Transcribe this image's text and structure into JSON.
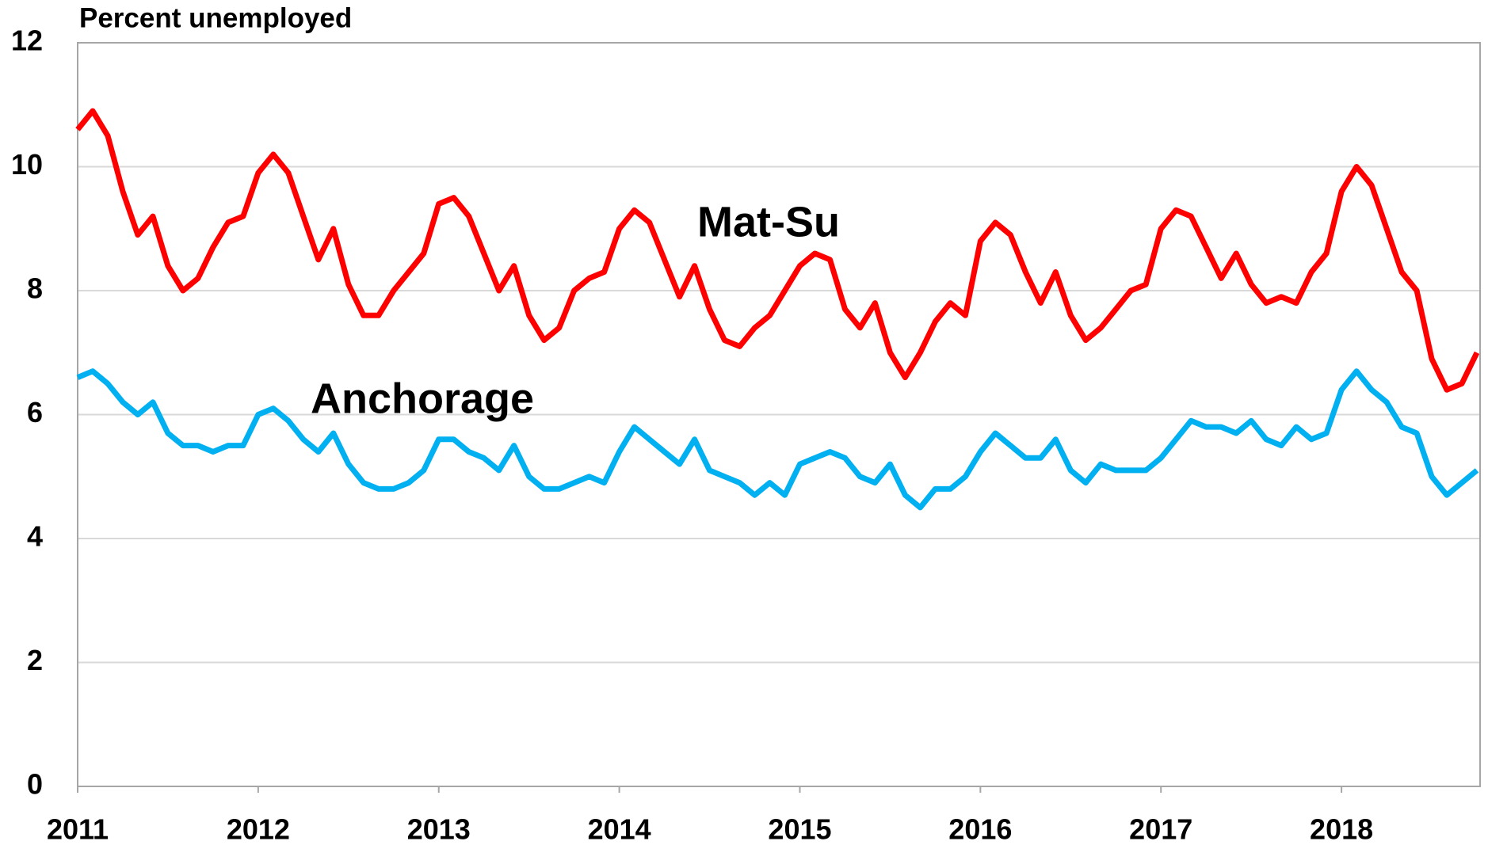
{
  "chart_data": {
    "type": "line",
    "title": "Percent unemployed",
    "x": [
      2011,
      2011.0833,
      2011.1667,
      2011.25,
      2011.3333,
      2011.4167,
      2011.5,
      2011.5833,
      2011.6667,
      2011.75,
      2011.8333,
      2011.9167,
      2012,
      2012.0833,
      2012.1667,
      2012.25,
      2012.3333,
      2012.4167,
      2012.5,
      2012.5833,
      2012.6667,
      2012.75,
      2012.8333,
      2012.9167,
      2013,
      2013.0833,
      2013.1667,
      2013.25,
      2013.3333,
      2013.4167,
      2013.5,
      2013.5833,
      2013.6667,
      2013.75,
      2013.8333,
      2013.9167,
      2014,
      2014.0833,
      2014.1667,
      2014.25,
      2014.3333,
      2014.4167,
      2014.5,
      2014.5833,
      2014.6667,
      2014.75,
      2014.8333,
      2014.9167,
      2015,
      2015.0833,
      2015.1667,
      2015.25,
      2015.3333,
      2015.4167,
      2015.5,
      2015.5833,
      2015.6667,
      2015.75,
      2015.8333,
      2015.9167,
      2016,
      2016.0833,
      2016.1667,
      2016.25,
      2016.3333,
      2016.4167,
      2016.5,
      2016.5833,
      2016.6667,
      2016.75,
      2016.8333,
      2016.9167,
      2017,
      2017.0833,
      2017.1667,
      2017.25,
      2017.3333,
      2017.4167,
      2017.5,
      2017.5833,
      2017.6667,
      2017.75,
      2017.8333,
      2017.9167,
      2018,
      2018.0833,
      2018.1667,
      2018.25,
      2018.3333,
      2018.4167,
      2018.5,
      2018.5833,
      2018.6667,
      2018.75
    ],
    "series": [
      {
        "name": "Mat-Su",
        "color": "#ff0000",
        "values": [
          10.6,
          10.9,
          10.5,
          9.6,
          8.9,
          9.2,
          8.4,
          8.0,
          8.2,
          8.7,
          9.1,
          9.2,
          9.9,
          10.2,
          9.9,
          9.2,
          8.5,
          9.0,
          8.1,
          7.6,
          7.6,
          8.0,
          8.3,
          8.6,
          9.4,
          9.5,
          9.2,
          8.6,
          8.0,
          8.4,
          7.6,
          7.2,
          7.4,
          8.0,
          8.2,
          8.3,
          9.0,
          9.3,
          9.1,
          8.5,
          7.9,
          8.4,
          7.7,
          7.2,
          7.1,
          7.4,
          7.6,
          8.0,
          8.4,
          8.6,
          8.5,
          7.7,
          7.4,
          7.8,
          7.0,
          6.6,
          7.0,
          7.5,
          7.8,
          7.6,
          8.8,
          9.1,
          8.9,
          8.3,
          7.8,
          8.3,
          7.6,
          7.2,
          7.4,
          7.7,
          8.0,
          8.1,
          9.0,
          9.3,
          9.2,
          8.7,
          8.2,
          8.6,
          8.1,
          7.8,
          7.9,
          7.8,
          8.3,
          8.6,
          9.6,
          10.0,
          9.7,
          9.0,
          8.3,
          8.0,
          6.9,
          6.4,
          6.5,
          7.0
        ]
      },
      {
        "name": "Anchorage",
        "color": "#00b0f0",
        "values": [
          6.6,
          6.7,
          6.5,
          6.2,
          6.0,
          6.2,
          5.7,
          5.5,
          5.5,
          5.4,
          5.5,
          5.5,
          6.0,
          6.1,
          5.9,
          5.6,
          5.4,
          5.7,
          5.2,
          4.9,
          4.8,
          4.8,
          4.9,
          5.1,
          5.6,
          5.6,
          5.4,
          5.3,
          5.1,
          5.5,
          5.0,
          4.8,
          4.8,
          4.9,
          5.0,
          4.9,
          5.4,
          5.8,
          5.6,
          5.4,
          5.2,
          5.6,
          5.1,
          5.0,
          4.9,
          4.7,
          4.9,
          4.7,
          5.2,
          5.3,
          5.4,
          5.3,
          5.0,
          4.9,
          5.2,
          4.7,
          4.5,
          4.8,
          4.8,
          5.0,
          5.4,
          5.7,
          5.5,
          5.3,
          5.3,
          5.6,
          5.1,
          4.9,
          5.2,
          5.1,
          5.1,
          5.1,
          5.3,
          5.6,
          5.9,
          5.8,
          5.8,
          5.7,
          5.9,
          5.6,
          5.5,
          5.8,
          5.6,
          5.7,
          6.4,
          6.7,
          6.4,
          6.2,
          5.8,
          5.7,
          5.0,
          4.7,
          4.9,
          5.1
        ]
      }
    ],
    "xlim": [
      2011,
      2018.75
    ],
    "xticks": [
      2011,
      2012,
      2013,
      2014,
      2015,
      2016,
      2017,
      2018
    ],
    "ylim": [
      0,
      12
    ],
    "yticks": [
      0,
      2,
      4,
      6,
      8,
      10,
      12
    ],
    "grid": true
  }
}
